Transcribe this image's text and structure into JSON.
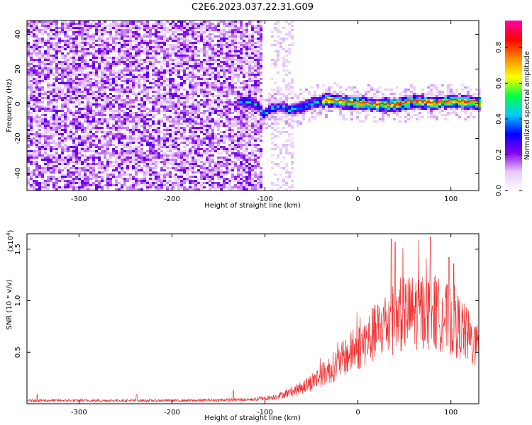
{
  "title": "C2E6.2023.037.22.31.G09",
  "colors": {
    "snr_line": "#ee3333",
    "axis": "#000000",
    "background": "#ffffff"
  },
  "chart_data": [
    {
      "type": "heatmap",
      "name": "spectrogram",
      "xlabel": "Height of straight line (km)",
      "ylabel": "Frequency (Hz)",
      "xlim": [
        -356,
        130
      ],
      "ylim": [
        -50,
        48
      ],
      "xticks": [
        -300,
        -200,
        -100,
        0,
        100
      ],
      "yticks": [
        -40,
        -20,
        0,
        20,
        40
      ],
      "xtick_labels": [
        "-300",
        "-200",
        "-100",
        "0",
        "100"
      ],
      "ytick_labels": [
        "-40",
        "-20",
        "0",
        "20",
        "40"
      ],
      "colorbar": {
        "label": "Normalized spectral amplitude",
        "range": [
          0,
          0.95
        ],
        "ticks": [
          0.0,
          0.2,
          0.4,
          0.6,
          0.8
        ],
        "tick_labels": [
          "0.0",
          "0.2",
          "0.4",
          "0.6",
          "0.8"
        ],
        "colormap": [
          "#ffffff",
          "#e8c8f8",
          "#8800ee",
          "#0000ff",
          "#00ccff",
          "#00ff44",
          "#ffff00",
          "#ff8800",
          "#ff0000",
          "#ff00aa"
        ]
      },
      "regions": [
        {
          "x_range": [
            -356,
            -105
          ],
          "description": "broadband noise",
          "amplitude": 0.15
        },
        {
          "x_range": [
            -105,
            130
          ],
          "center_frequency_hz": 0,
          "band_width_hz": 8,
          "peak_amplitude": 0.85
        }
      ],
      "ridge": [
        {
          "x": -125,
          "y": 2
        },
        {
          "x": -110,
          "y": 0
        },
        {
          "x": -102,
          "y": -6
        },
        {
          "x": -95,
          "y": -2
        },
        {
          "x": -85,
          "y": -1
        },
        {
          "x": -75,
          "y": -3
        },
        {
          "x": -65,
          "y": -2
        },
        {
          "x": -50,
          "y": 1
        },
        {
          "x": -35,
          "y": 3
        },
        {
          "x": -20,
          "y": 2
        },
        {
          "x": 0,
          "y": 1
        },
        {
          "x": 20,
          "y": 0
        },
        {
          "x": 40,
          "y": 0
        },
        {
          "x": 60,
          "y": 2
        },
        {
          "x": 80,
          "y": 1
        },
        {
          "x": 100,
          "y": 2
        },
        {
          "x": 130,
          "y": 1
        }
      ]
    },
    {
      "type": "line",
      "name": "snr",
      "xlabel": "Height of straight line (km)",
      "ylabel": "SNR (10 * v/v)",
      "yscale_label": "(x10^4)",
      "yscale_base": "(x10",
      "yscale_exp": "4",
      "yscale_close": ")",
      "xlim": [
        -356,
        130
      ],
      "ylim": [
        0,
        1.65
      ],
      "xticks": [
        -300,
        -200,
        -100,
        0,
        100
      ],
      "yticks": [
        0.5,
        1.0,
        1.5
      ],
      "xtick_labels": [
        "-300",
        "-200",
        "-100",
        "0",
        "100"
      ],
      "ytick_labels": [
        "0.5",
        "1.0",
        "1.5"
      ],
      "envelope": [
        {
          "x": -356,
          "y": 0.03
        },
        {
          "x": -300,
          "y": 0.03
        },
        {
          "x": -240,
          "y": 0.03
        },
        {
          "x": -180,
          "y": 0.03
        },
        {
          "x": -140,
          "y": 0.035
        },
        {
          "x": -110,
          "y": 0.04
        },
        {
          "x": -90,
          "y": 0.07
        },
        {
          "x": -70,
          "y": 0.12
        },
        {
          "x": -50,
          "y": 0.22
        },
        {
          "x": -30,
          "y": 0.35
        },
        {
          "x": -10,
          "y": 0.5
        },
        {
          "x": 10,
          "y": 0.65
        },
        {
          "x": 30,
          "y": 0.82
        },
        {
          "x": 50,
          "y": 0.92
        },
        {
          "x": 70,
          "y": 0.95
        },
        {
          "x": 90,
          "y": 0.9
        },
        {
          "x": 110,
          "y": 0.78
        },
        {
          "x": 130,
          "y": 0.55
        }
      ],
      "spikes": [
        {
          "x": -345,
          "y": 0.09
        },
        {
          "x": -238,
          "y": 0.09
        },
        {
          "x": -134,
          "y": 0.13
        },
        {
          "x": 36,
          "y": 1.6
        },
        {
          "x": 40,
          "y": 1.57
        },
        {
          "x": 78,
          "y": 1.62
        },
        {
          "x": 98,
          "y": 1.42
        },
        {
          "x": 103,
          "y": 1.36
        }
      ]
    }
  ]
}
